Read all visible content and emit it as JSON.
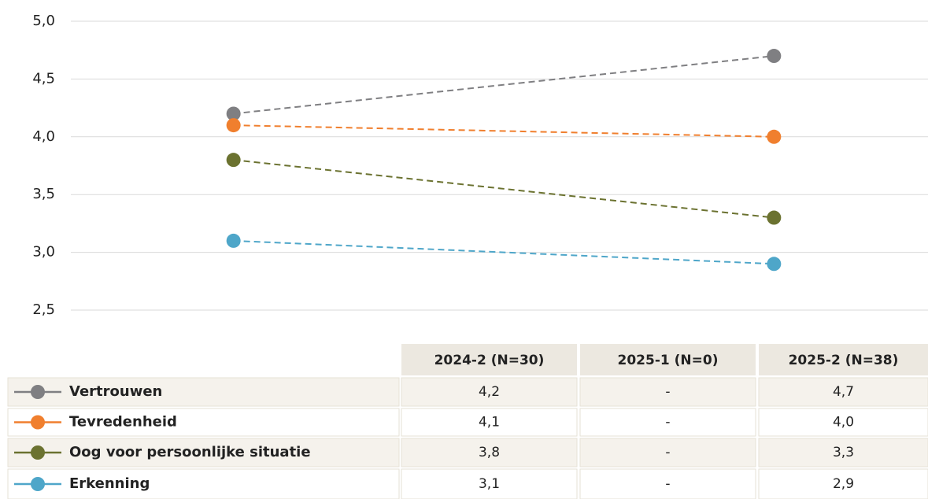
{
  "chart_data": {
    "type": "line",
    "ylim": [
      2.5,
      5.0
    ],
    "yticks": [
      {
        "value": 2.5,
        "label": "2,5"
      },
      {
        "value": 3.0,
        "label": "3,0"
      },
      {
        "value": 3.5,
        "label": "3,5"
      },
      {
        "value": 4.0,
        "label": "4,0"
      },
      {
        "value": 4.5,
        "label": "4,5"
      },
      {
        "value": 5.0,
        "label": "5,0"
      }
    ],
    "grid": true,
    "categories": [
      "2024-2 (N=30)",
      "2025-1 (N=0)",
      "2025-2 (N=38)"
    ],
    "series": [
      {
        "name": "Vertrouwen",
        "color": "#7f7f82",
        "values": [
          4.2,
          null,
          4.7
        ],
        "value_labels": [
          "4,2",
          "-",
          "4,7"
        ]
      },
      {
        "name": "Tevredenheid",
        "color": "#f07f2e",
        "values": [
          4.1,
          null,
          4.0
        ],
        "value_labels": [
          "4,1",
          "-",
          "4,0"
        ]
      },
      {
        "name": "Oog voor persoonlijke situatie",
        "color": "#6b7230",
        "values": [
          3.8,
          null,
          3.3
        ],
        "value_labels": [
          "3,8",
          "-",
          "3,3"
        ]
      },
      {
        "name": "Erkenning",
        "color": "#4ea6c9",
        "values": [
          3.1,
          null,
          2.9
        ],
        "value_labels": [
          "3,1",
          "-",
          "2,9"
        ]
      }
    ]
  }
}
